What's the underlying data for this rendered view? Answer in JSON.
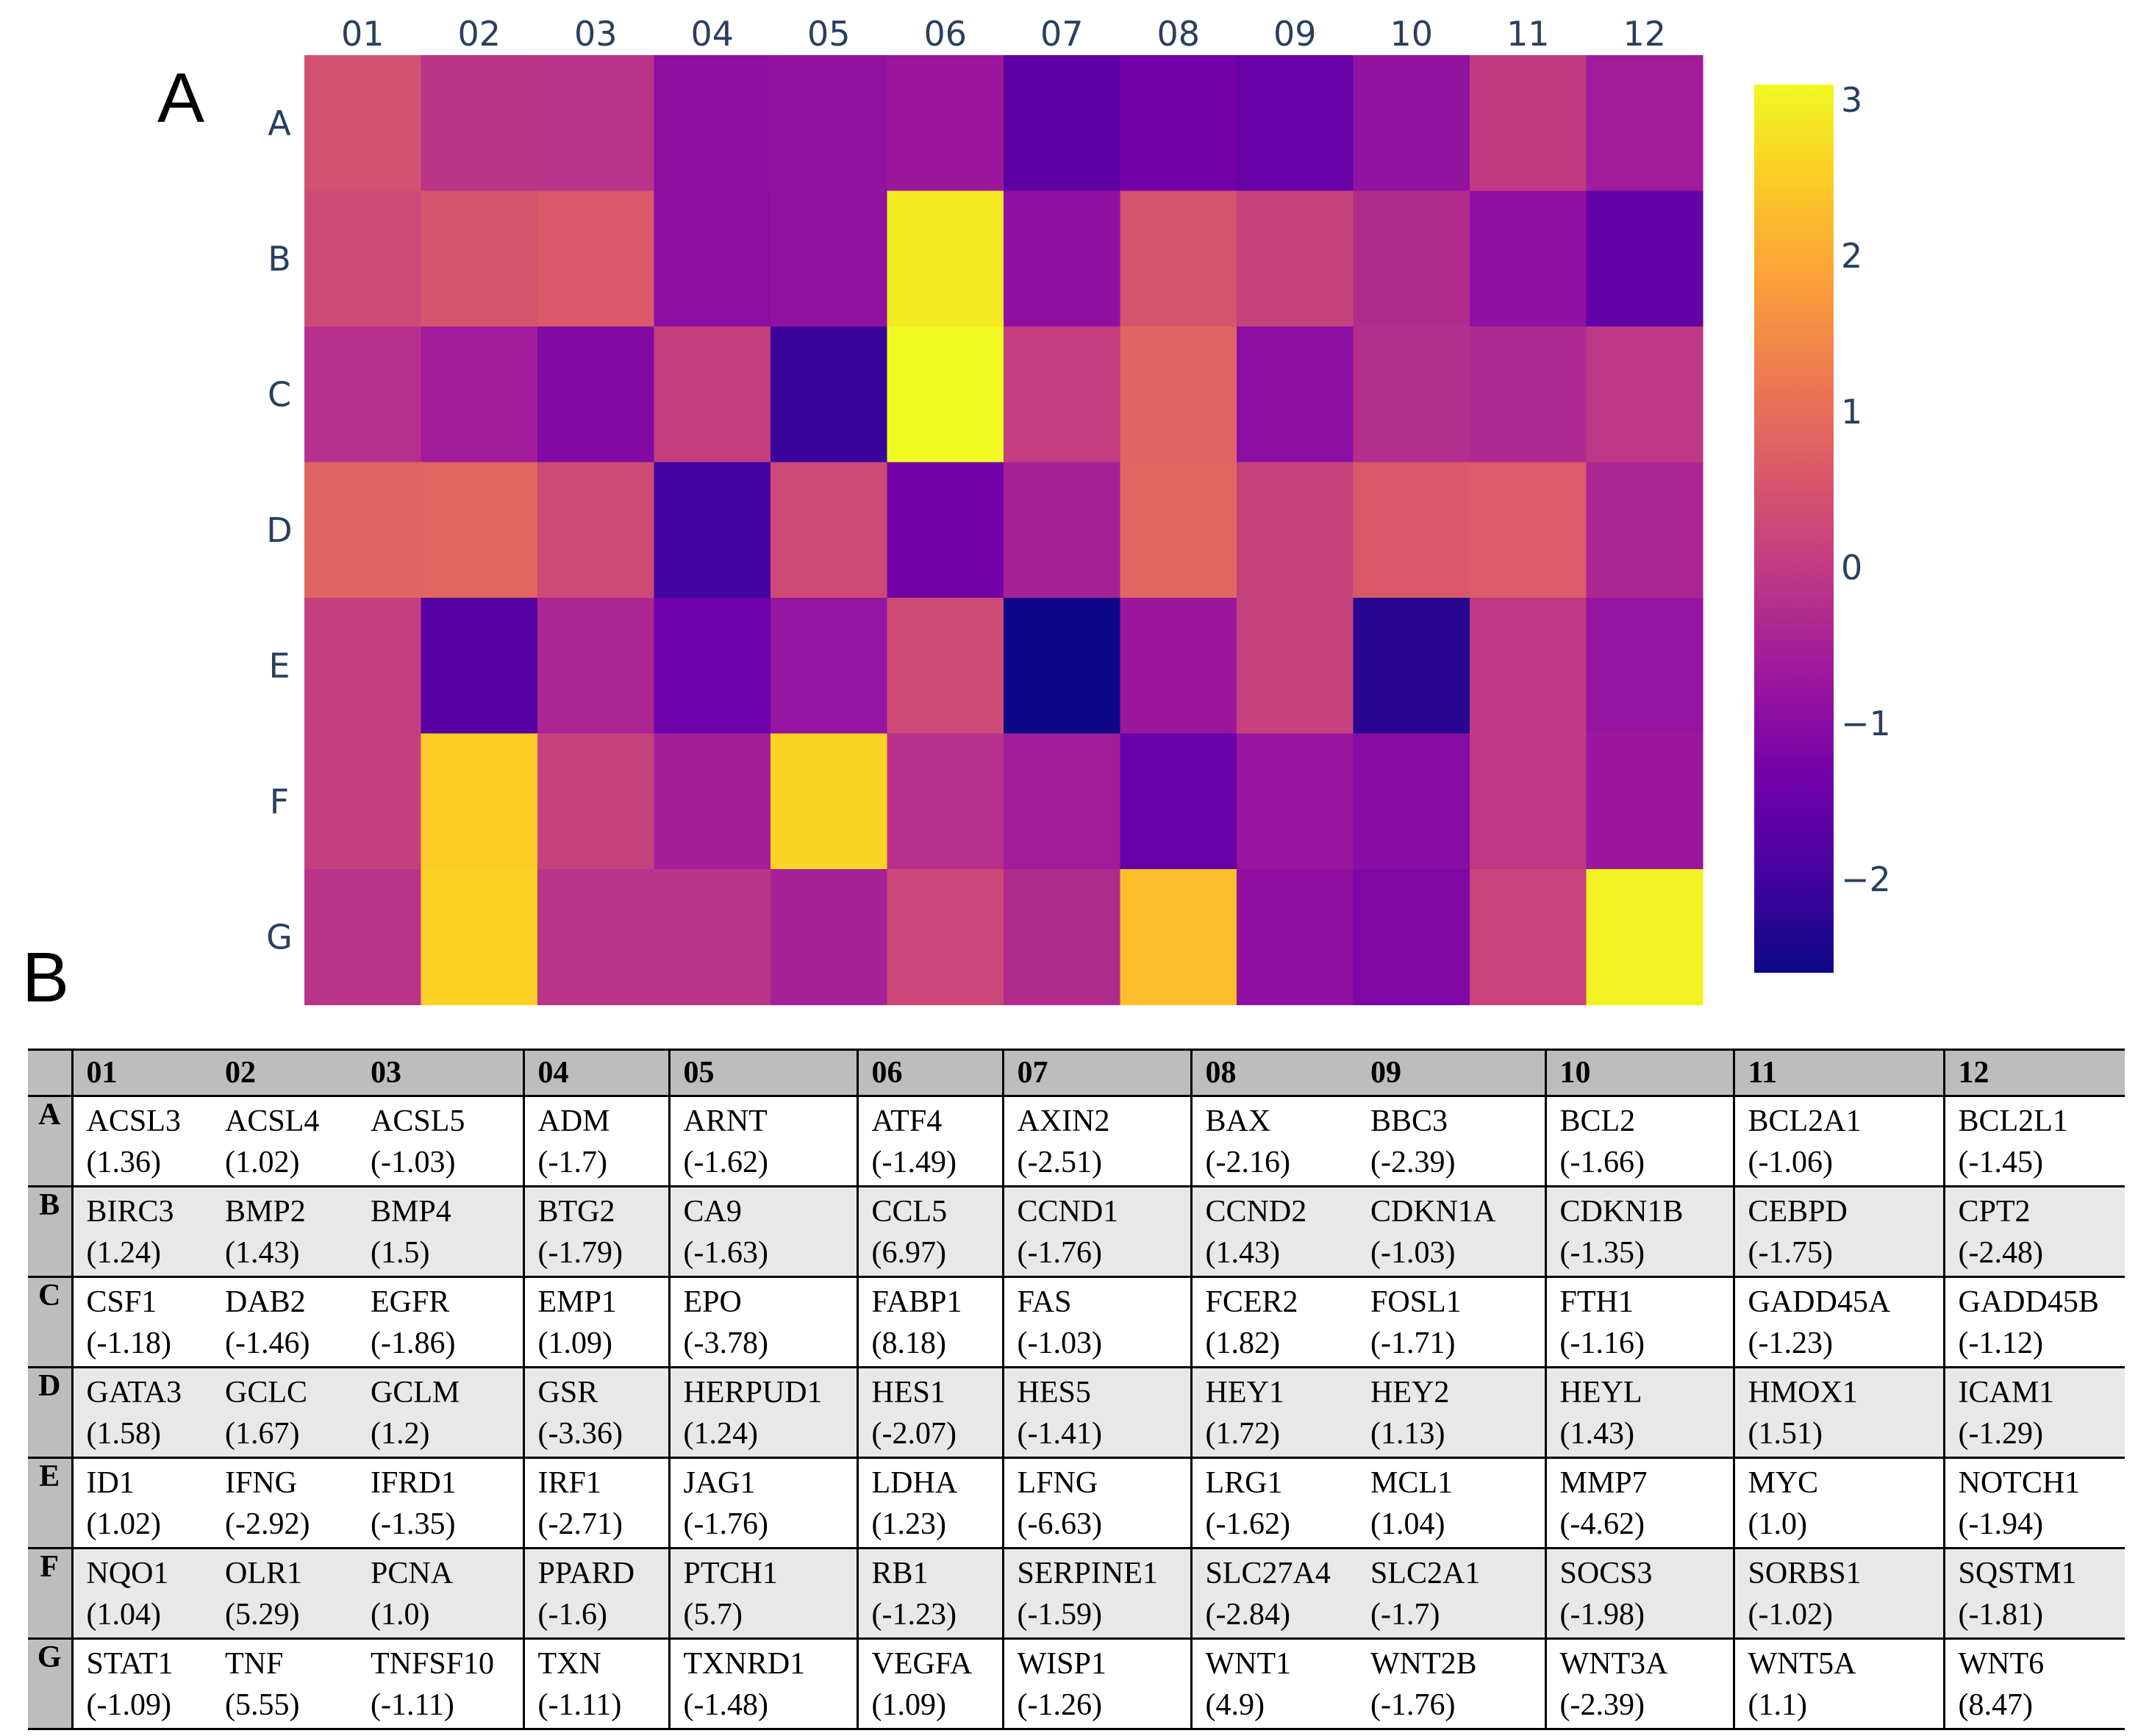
{
  "panel_labels": {
    "a": "A",
    "b": "B"
  },
  "chart_data": {
    "type": "heatmap",
    "title": "",
    "x_categories": [
      "01",
      "02",
      "03",
      "04",
      "05",
      "06",
      "07",
      "08",
      "09",
      "10",
      "11",
      "12"
    ],
    "y_categories": [
      "A",
      "B",
      "C",
      "D",
      "E",
      "F",
      "G"
    ],
    "colorscale": [
      "#0d0887",
      "#46039f",
      "#7201a8",
      "#9c179e",
      "#bd3786",
      "#d8576b",
      "#ed7953",
      "#fb9f3a",
      "#fdca26",
      "#f0f921"
    ],
    "zmin": -2.6,
    "zmax": 3.1,
    "colorbar_ticks": [
      "3",
      "2",
      "1",
      "0",
      "−1",
      "−2"
    ],
    "colorbar_tick_values": [
      3,
      2,
      1,
      0,
      -1,
      -2
    ],
    "z": [
      [
        0.45,
        -0.1,
        -0.15,
        -0.9,
        -0.85,
        -0.7,
        -1.6,
        -1.3,
        -1.5,
        -0.85,
        0.0,
        -0.6
      ],
      [
        0.3,
        0.5,
        0.6,
        -0.95,
        -0.85,
        2.9,
        -0.9,
        0.5,
        0.15,
        -0.3,
        -0.9,
        -1.55
      ],
      [
        -0.2,
        -0.6,
        -1.1,
        0.1,
        -2.1,
        3.1,
        0.05,
        0.8,
        -0.95,
        -0.25,
        -0.35,
        -0.05
      ],
      [
        0.8,
        0.85,
        0.3,
        -2.0,
        0.3,
        -1.3,
        -0.5,
        0.85,
        0.15,
        0.6,
        0.65,
        -0.4
      ],
      [
        0.1,
        -1.7,
        -0.4,
        -1.4,
        -0.8,
        0.3,
        -2.6,
        -0.7,
        0.15,
        -2.3,
        -0.05,
        -0.8
      ],
      [
        0.1,
        2.5,
        0.15,
        -0.55,
        2.6,
        -0.2,
        -0.6,
        -1.5,
        -0.75,
        -1.0,
        -0.05,
        -0.7
      ],
      [
        -0.15,
        2.55,
        -0.15,
        -0.15,
        -0.5,
        0.25,
        -0.3,
        2.3,
        -0.9,
        -1.15,
        0.2,
        3.0
      ]
    ],
    "table": {
      "columns": [
        "01",
        "02",
        "03",
        "04",
        "05",
        "06",
        "07",
        "08",
        "09",
        "10",
        "11",
        "12"
      ],
      "rows": [
        {
          "label": "A",
          "cells": [
            {
              "gene": "ACSL3",
              "value": "(1.36)"
            },
            {
              "gene": "ACSL4",
              "value": "(1.02)"
            },
            {
              "gene": "ACSL5",
              "value": "(-1.03)"
            },
            {
              "gene": "ADM",
              "value": "(-1.7)"
            },
            {
              "gene": "ARNT",
              "value": "(-1.62)"
            },
            {
              "gene": "ATF4",
              "value": "(-1.49)"
            },
            {
              "gene": "AXIN2",
              "value": "(-2.51)"
            },
            {
              "gene": "BAX",
              "value": "(-2.16)"
            },
            {
              "gene": "BBC3",
              "value": "(-2.39)"
            },
            {
              "gene": "BCL2",
              "value": "(-1.66)"
            },
            {
              "gene": "BCL2A1",
              "value": "(-1.06)"
            },
            {
              "gene": "BCL2L1",
              "value": "(-1.45)"
            }
          ]
        },
        {
          "label": "B",
          "cells": [
            {
              "gene": "BIRC3",
              "value": "(1.24)"
            },
            {
              "gene": "BMP2",
              "value": "(1.43)"
            },
            {
              "gene": "BMP4",
              "value": "(1.5)"
            },
            {
              "gene": "BTG2",
              "value": "(-1.79)"
            },
            {
              "gene": "CA9",
              "value": "(-1.63)"
            },
            {
              "gene": "CCL5",
              "value": "(6.97)"
            },
            {
              "gene": "CCND1",
              "value": "(-1.76)"
            },
            {
              "gene": "CCND2",
              "value": "(1.43)"
            },
            {
              "gene": "CDKN1A",
              "value": "(-1.03)"
            },
            {
              "gene": "CDKN1B",
              "value": "(-1.35)"
            },
            {
              "gene": "CEBPD",
              "value": "(-1.75)"
            },
            {
              "gene": "CPT2",
              "value": "(-2.48)"
            }
          ]
        },
        {
          "label": "C",
          "cells": [
            {
              "gene": "CSF1",
              "value": "(-1.18)"
            },
            {
              "gene": "DAB2",
              "value": "(-1.46)"
            },
            {
              "gene": "EGFR",
              "value": "(-1.86)"
            },
            {
              "gene": "EMP1",
              "value": "(1.09)"
            },
            {
              "gene": "EPO",
              "value": "(-3.78)"
            },
            {
              "gene": "FABP1",
              "value": "(8.18)"
            },
            {
              "gene": "FAS",
              "value": "(-1.03)"
            },
            {
              "gene": "FCER2",
              "value": "(1.82)"
            },
            {
              "gene": "FOSL1",
              "value": "(-1.71)"
            },
            {
              "gene": "FTH1",
              "value": "(-1.16)"
            },
            {
              "gene": "GADD45A",
              "value": "(-1.23)"
            },
            {
              "gene": "GADD45B",
              "value": "(-1.12)"
            }
          ]
        },
        {
          "label": "D",
          "cells": [
            {
              "gene": "GATA3",
              "value": "(1.58)"
            },
            {
              "gene": "GCLC",
              "value": "(1.67)"
            },
            {
              "gene": "GCLM",
              "value": "(1.2)"
            },
            {
              "gene": "GSR",
              "value": "(-3.36)"
            },
            {
              "gene": "HERPUD1",
              "value": "(1.24)"
            },
            {
              "gene": "HES1",
              "value": "(-2.07)"
            },
            {
              "gene": "HES5",
              "value": "(-1.41)"
            },
            {
              "gene": "HEY1",
              "value": "(1.72)"
            },
            {
              "gene": "HEY2",
              "value": "(1.13)"
            },
            {
              "gene": "HEYL",
              "value": "(1.43)"
            },
            {
              "gene": "HMOX1",
              "value": "(1.51)"
            },
            {
              "gene": "ICAM1",
              "value": "(-1.29)"
            }
          ]
        },
        {
          "label": "E",
          "cells": [
            {
              "gene": "ID1",
              "value": "(1.02)"
            },
            {
              "gene": "IFNG",
              "value": "(-2.92)"
            },
            {
              "gene": "IFRD1",
              "value": "(-1.35)"
            },
            {
              "gene": "IRF1",
              "value": "(-2.71)"
            },
            {
              "gene": "JAG1",
              "value": "(-1.76)"
            },
            {
              "gene": "LDHA",
              "value": "(1.23)"
            },
            {
              "gene": "LFNG",
              "value": "(-6.63)"
            },
            {
              "gene": "LRG1",
              "value": "(-1.62)"
            },
            {
              "gene": "MCL1",
              "value": "(1.04)"
            },
            {
              "gene": "MMP7",
              "value": "(-4.62)"
            },
            {
              "gene": "MYC",
              "value": "(1.0)"
            },
            {
              "gene": "NOTCH1",
              "value": "(-1.94)"
            }
          ]
        },
        {
          "label": "F",
          "cells": [
            {
              "gene": "NQO1",
              "value": "(1.04)"
            },
            {
              "gene": "OLR1",
              "value": "(5.29)"
            },
            {
              "gene": "PCNA",
              "value": "(1.0)"
            },
            {
              "gene": "PPARD",
              "value": "(-1.6)"
            },
            {
              "gene": "PTCH1",
              "value": "(5.7)"
            },
            {
              "gene": "RB1",
              "value": "(-1.23)"
            },
            {
              "gene": "SERPINE1",
              "value": "(-1.59)"
            },
            {
              "gene": "SLC27A4",
              "value": "(-2.84)"
            },
            {
              "gene": "SLC2A1",
              "value": "(-1.7)"
            },
            {
              "gene": "SOCS3",
              "value": "(-1.98)"
            },
            {
              "gene": "SORBS1",
              "value": "(-1.02)"
            },
            {
              "gene": "SQSTM1",
              "value": "(-1.81)"
            }
          ]
        },
        {
          "label": "G",
          "cells": [
            {
              "gene": "STAT1",
              "value": "(-1.09)"
            },
            {
              "gene": "TNF",
              "value": "(5.55)"
            },
            {
              "gene": "TNFSF10",
              "value": "(-1.11)"
            },
            {
              "gene": "TXN",
              "value": "(-1.11)"
            },
            {
              "gene": "TXNRD1",
              "value": "(-1.48)"
            },
            {
              "gene": "VEGFA",
              "value": "(1.09)"
            },
            {
              "gene": "WISP1",
              "value": "(-1.26)"
            },
            {
              "gene": "WNT1",
              "value": "(4.9)"
            },
            {
              "gene": "WNT2B",
              "value": "(-1.76)"
            },
            {
              "gene": "WNT3A",
              "value": "(-2.39)"
            },
            {
              "gene": "WNT5A",
              "value": "(1.1)"
            },
            {
              "gene": "WNT6",
              "value": "(8.47)"
            }
          ]
        }
      ]
    }
  }
}
